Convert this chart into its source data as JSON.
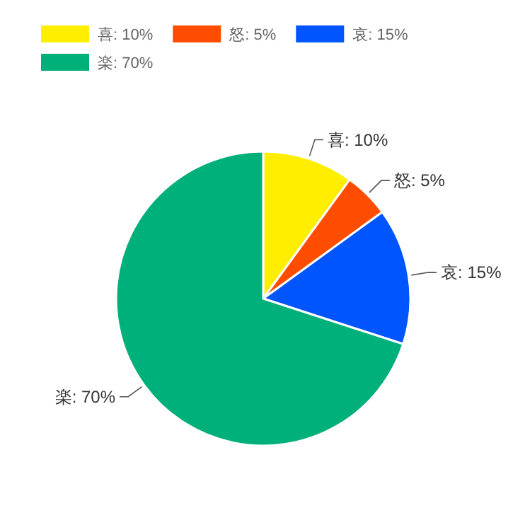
{
  "chart_data": {
    "type": "pie",
    "categories": [
      "喜: 10%",
      "怒: 5%",
      "哀: 15%",
      "楽: 70%"
    ],
    "values": [
      10,
      5,
      15,
      70
    ],
    "colors": [
      "#ffee00",
      "#ff4d00",
      "#0055ff",
      "#00b07a"
    ],
    "legend": "top left"
  }
}
